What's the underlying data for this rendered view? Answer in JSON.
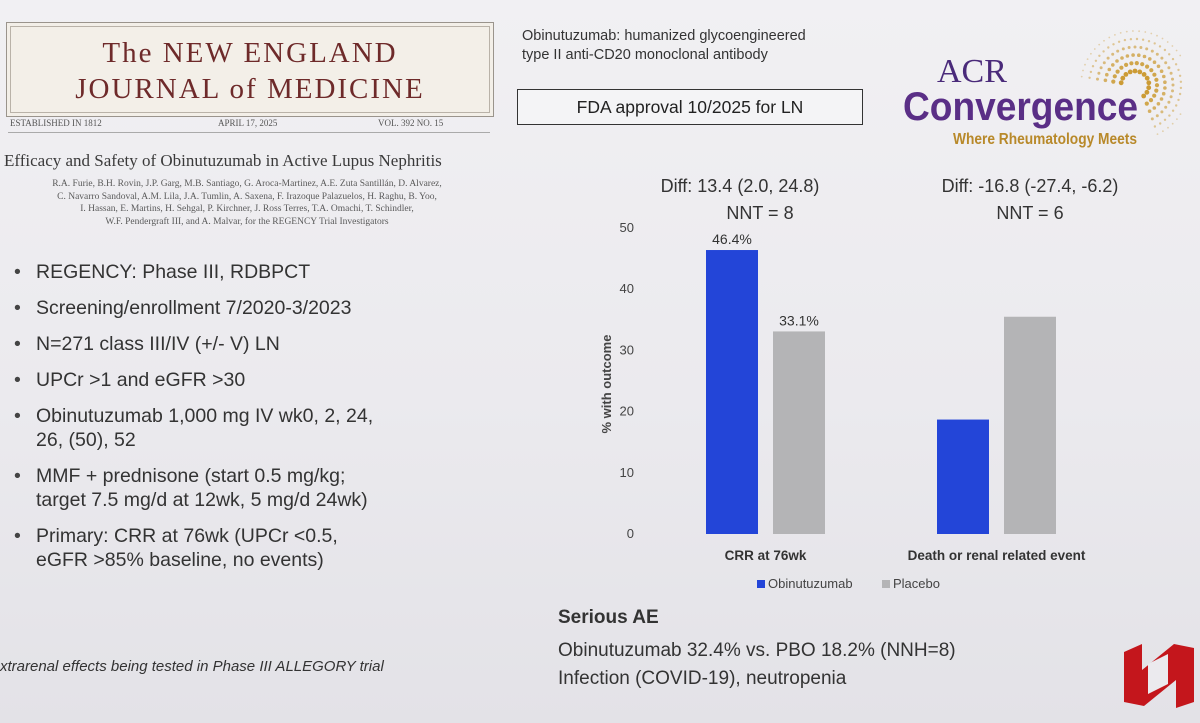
{
  "journal": {
    "name_line1": "The NEW ENGLAND",
    "name_line2": "JOURNAL of MEDICINE",
    "established": "ESTABLISHED IN 1812",
    "date": "APRIL 17, 2025",
    "volume": "VOL. 392   NO. 15"
  },
  "article": {
    "title": "Efficacy and Safety of Obinutuzumab in Active Lupus Nephritis",
    "authors": [
      "R.A. Furie, B.H. Rovin, J.P. Garg, M.B. Santiago, G. Aroca-Martinez, A.E. Zuta Santillán, D. Alvarez,",
      "C. Navarro Sandoval, A.M. Lila, J.A. Tumlin, A. Saxena, F. Irazoque Palazuelos, H. Raghu, B. Yoo,",
      "I. Hassan, E. Martins, H. Sehgal, P. Kirchner, J. Ross Terres, T.A. Omachi, T. Schindler,",
      "W.F. Pendergraft III, and A. Malvar, for the REGENCY Trial Investigators"
    ]
  },
  "bullets": [
    "REGENCY: Phase III, RDBPCT",
    "Screening/enrollment 7/2020-3/2023",
    "N=271 class III/IV (+/- V) LN",
    "UPCr >1 and eGFR >30",
    "Obinutuzumab 1,000 mg IV wk0, 2, 24,\n26, (50), 52",
    "MMF + prednisone (start 0.5 mg/kg;\ntarget 7.5 mg/d at 12wk, 5 mg/d 24wk)",
    "Primary: CRR at 76wk (UPCr <0.5,\neGFR >85% baseline, no events)"
  ],
  "footnote": "xtrarenal effects being tested in Phase III ALLEGORY trial",
  "drug": {
    "description_line1": "Obinutuzumab: humanized glycoengineered",
    "description_line2": "type II anti-CD20 monoclonal antibody",
    "fda": "FDA approval 10/2025 for LN"
  },
  "logo": {
    "acr": "ACR",
    "convergence": "Convergence",
    "tagline": "Where Rheumatology Meets"
  },
  "chart_data": {
    "type": "bar",
    "categories": [
      "CRR at 76wk",
      "Death or renal related event"
    ],
    "series": [
      {
        "name": "Obinutuzumab",
        "values": [
          46.4,
          18.7
        ],
        "color": "#2345d8"
      },
      {
        "name": "Placebo",
        "values": [
          33.1,
          35.5
        ],
        "color": "#b4b4b6"
      }
    ],
    "data_labels": [
      "46.4%",
      "33.1%"
    ],
    "ylabel": "% with outcome",
    "ylim": [
      0,
      50
    ],
    "yticks": [
      0,
      10,
      20,
      30,
      40,
      50
    ],
    "annotations": [
      {
        "line1": "Diff: 13.4 (2.0, 24.8)",
        "line2": "NNT = 8"
      },
      {
        "line1": "Diff: -16.8 (-27.4, -6.2)",
        "line2": "NNT = 6"
      }
    ]
  },
  "serious_ae": {
    "title": "Serious AE",
    "line1": "Obinutuzumab 32.4% vs. PBO 18.2% (NNH=8)",
    "line2": "Infection (COVID-19), neutropenia"
  },
  "colors": {
    "obinutuzumab": "#2345d8",
    "placebo": "#b4b4b6",
    "unmc_red": "#c4161c",
    "acr_purple": "#4a2a7a",
    "acr_gold": "#c9962a"
  }
}
